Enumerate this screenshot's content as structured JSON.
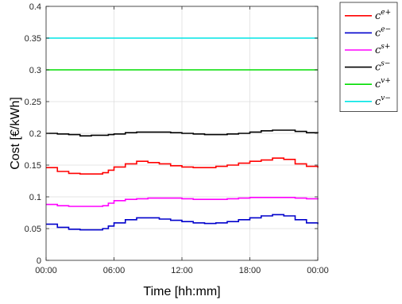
{
  "chart_data": {
    "type": "line",
    "xlabel": "Time [hh:mm]",
    "ylabel": "Cost [€/kWh]",
    "x_tick_labels": [
      "00:00",
      "06:00",
      "12:00",
      "18:00",
      "00:00"
    ],
    "x_ticks_hours": [
      0,
      6,
      12,
      18,
      24
    ],
    "xlim_hours": [
      0,
      24
    ],
    "ylim": [
      0,
      0.4
    ],
    "y_ticks": [
      0,
      0.05,
      0.1,
      0.15,
      0.2,
      0.25,
      0.3,
      0.35,
      0.4
    ],
    "y_tick_labels": [
      "0",
      "0.05",
      "0.1",
      "0.15",
      "0.2",
      "0.25",
      "0.3",
      "0.35",
      "0.4"
    ],
    "grid": true,
    "legend_position": "outside-top-right",
    "series": [
      {
        "name": "c^{e+}",
        "label_base": "c",
        "label_sup": "e+",
        "color": "#ff0000",
        "x": [
          0,
          1,
          2,
          3,
          4,
          5,
          5.5,
          6,
          7,
          8,
          9,
          10,
          11,
          12,
          13,
          14,
          15,
          16,
          17,
          18,
          19,
          20,
          21,
          22,
          23,
          24
        ],
        "values": [
          0.146,
          0.14,
          0.137,
          0.136,
          0.136,
          0.138,
          0.142,
          0.147,
          0.152,
          0.156,
          0.154,
          0.152,
          0.149,
          0.147,
          0.146,
          0.146,
          0.148,
          0.15,
          0.153,
          0.156,
          0.158,
          0.161,
          0.159,
          0.152,
          0.148,
          0.146
        ]
      },
      {
        "name": "c^{e-}",
        "label_base": "c",
        "label_sup": "e−",
        "color": "#0000cc",
        "x": [
          0,
          1,
          2,
          3,
          4,
          5,
          5.5,
          6,
          7,
          8,
          9,
          10,
          11,
          12,
          13,
          14,
          15,
          16,
          17,
          18,
          19,
          20,
          21,
          22,
          23,
          24
        ],
        "values": [
          0.057,
          0.052,
          0.049,
          0.048,
          0.048,
          0.05,
          0.054,
          0.059,
          0.064,
          0.067,
          0.067,
          0.065,
          0.063,
          0.061,
          0.059,
          0.058,
          0.059,
          0.061,
          0.064,
          0.067,
          0.07,
          0.072,
          0.07,
          0.064,
          0.059,
          0.057
        ]
      },
      {
        "name": "c^{s+}",
        "label_base": "c",
        "label_sup": "s+",
        "color": "#ff00ff",
        "x": [
          0,
          1,
          2,
          3,
          4,
          5,
          5.5,
          6,
          7,
          8,
          9,
          10,
          11,
          12,
          13,
          14,
          15,
          16,
          17,
          18,
          19,
          20,
          21,
          22,
          23,
          24
        ],
        "values": [
          0.088,
          0.086,
          0.085,
          0.085,
          0.085,
          0.086,
          0.09,
          0.094,
          0.096,
          0.097,
          0.098,
          0.098,
          0.098,
          0.097,
          0.096,
          0.096,
          0.096,
          0.097,
          0.098,
          0.099,
          0.099,
          0.099,
          0.099,
          0.098,
          0.097,
          0.096
        ]
      },
      {
        "name": "c^{s-}",
        "label_base": "c",
        "label_sup": "s−",
        "color": "#000000",
        "x": [
          0,
          1,
          2,
          3,
          4,
          5,
          5.5,
          6,
          7,
          8,
          9,
          10,
          11,
          12,
          13,
          14,
          15,
          16,
          17,
          18,
          19,
          20,
          21,
          22,
          23,
          24
        ],
        "values": [
          0.2,
          0.199,
          0.198,
          0.196,
          0.197,
          0.197,
          0.198,
          0.199,
          0.201,
          0.202,
          0.202,
          0.202,
          0.201,
          0.2,
          0.199,
          0.198,
          0.198,
          0.199,
          0.2,
          0.202,
          0.204,
          0.205,
          0.205,
          0.203,
          0.201,
          0.2
        ]
      },
      {
        "name": "c^{v+}",
        "label_base": "c",
        "label_sup": "v+",
        "color": "#00dd00",
        "x": [
          0,
          24
        ],
        "values": [
          0.3,
          0.3
        ]
      },
      {
        "name": "c^{v-}",
        "label_base": "c",
        "label_sup": "v−",
        "color": "#00e5e5",
        "x": [
          0,
          24
        ],
        "values": [
          0.35,
          0.35
        ]
      }
    ]
  }
}
